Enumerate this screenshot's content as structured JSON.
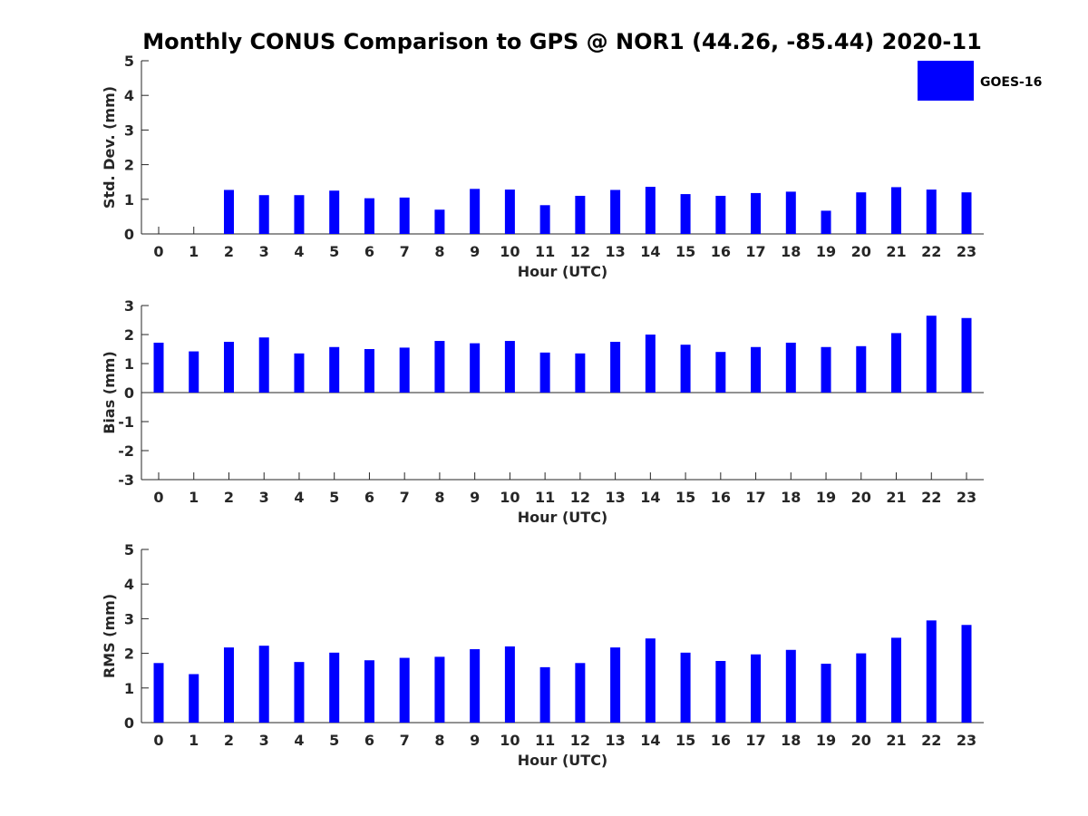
{
  "title": "Monthly CONUS Comparison to GPS @ NOR1 (44.26, -85.44) 2020-11",
  "legend": {
    "label": "GOES-16",
    "color": "#0000ff",
    "placement": "top-right"
  },
  "chart_data": [
    {
      "type": "bar",
      "ylabel": "Std. Dev. (mm)",
      "xlabel": "Hour (UTC)",
      "ylim": [
        0,
        5
      ],
      "yticks": [
        0,
        1,
        2,
        3,
        4,
        5
      ],
      "categories": [
        "0",
        "1",
        "2",
        "3",
        "4",
        "5",
        "6",
        "7",
        "8",
        "9",
        "10",
        "11",
        "12",
        "13",
        "14",
        "15",
        "16",
        "17",
        "18",
        "19",
        "20",
        "21",
        "22",
        "23"
      ],
      "series": [
        {
          "name": "GOES-16",
          "values": [
            null,
            null,
            1.27,
            1.12,
            1.12,
            1.25,
            1.03,
            1.05,
            0.7,
            1.3,
            1.28,
            0.83,
            1.1,
            1.27,
            1.36,
            1.15,
            1.1,
            1.18,
            1.22,
            0.67,
            1.2,
            1.35,
            1.28,
            1.2
          ]
        }
      ],
      "grid": false
    },
    {
      "type": "bar",
      "ylabel": "Bias (mm)",
      "xlabel": "Hour (UTC)",
      "ylim": [
        -3,
        3
      ],
      "yticks": [
        -3,
        -2,
        -1,
        0,
        1,
        2,
        3
      ],
      "categories": [
        "0",
        "1",
        "2",
        "3",
        "4",
        "5",
        "6",
        "7",
        "8",
        "9",
        "10",
        "11",
        "12",
        "13",
        "14",
        "15",
        "16",
        "17",
        "18",
        "19",
        "20",
        "21",
        "22",
        "23"
      ],
      "series": [
        {
          "name": "GOES-16",
          "values": [
            1.72,
            1.42,
            1.75,
            1.9,
            1.35,
            1.57,
            1.5,
            1.55,
            1.78,
            1.7,
            1.78,
            1.38,
            1.35,
            1.75,
            2.0,
            1.65,
            1.4,
            1.57,
            1.72,
            1.57,
            1.6,
            2.05,
            2.65,
            2.57
          ]
        }
      ],
      "grid": false
    },
    {
      "type": "bar",
      "ylabel": "RMS (mm)",
      "xlabel": "Hour (UTC)",
      "ylim": [
        0,
        5
      ],
      "yticks": [
        0,
        1,
        2,
        3,
        4,
        5
      ],
      "categories": [
        "0",
        "1",
        "2",
        "3",
        "4",
        "5",
        "6",
        "7",
        "8",
        "9",
        "10",
        "11",
        "12",
        "13",
        "14",
        "15",
        "16",
        "17",
        "18",
        "19",
        "20",
        "21",
        "22",
        "23"
      ],
      "series": [
        {
          "name": "GOES-16",
          "values": [
            1.72,
            1.4,
            2.17,
            2.22,
            1.75,
            2.02,
            1.8,
            1.87,
            1.9,
            2.12,
            2.2,
            1.6,
            1.72,
            2.17,
            2.43,
            2.02,
            1.78,
            1.97,
            2.1,
            1.7,
            2.0,
            2.45,
            2.95,
            2.82
          ]
        }
      ],
      "grid": false
    }
  ]
}
